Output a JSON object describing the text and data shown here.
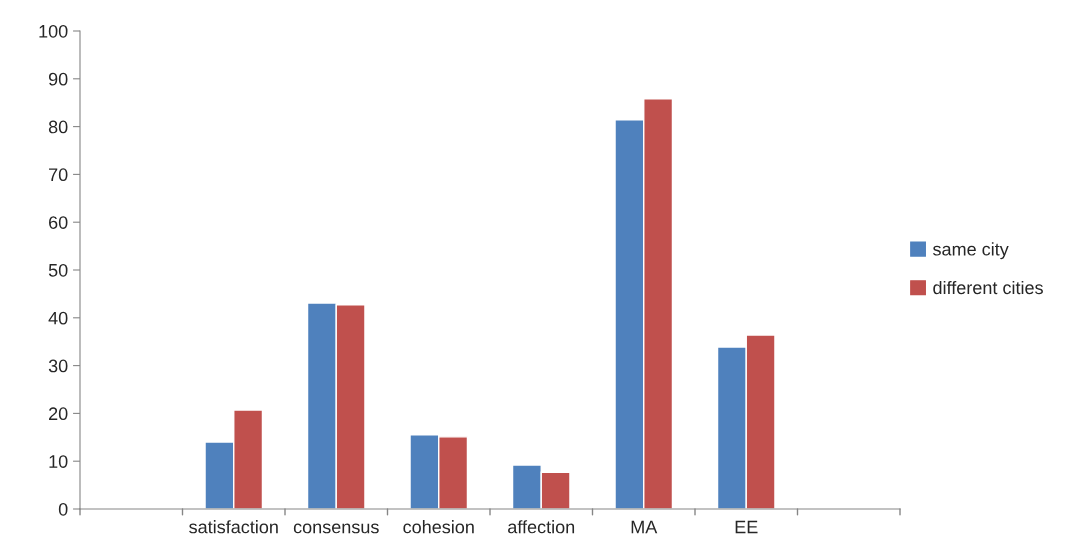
{
  "chart_data": {
    "type": "bar",
    "categories": [
      null,
      "satisfaction",
      "consensus",
      "cohesion",
      "affection",
      "MA",
      "EE",
      null
    ],
    "series": [
      {
        "name": "same city",
        "color": "#4f81bd",
        "values": [
          null,
          14.0,
          43.1,
          15.5,
          9.2,
          81.4,
          33.9,
          null
        ]
      },
      {
        "name": "different cities",
        "color": "#c0504d",
        "values": [
          null,
          20.7,
          42.7,
          15.1,
          7.7,
          85.8,
          36.4,
          null
        ]
      }
    ],
    "ylim": [
      0,
      100
    ],
    "yticks": [
      0,
      10,
      20,
      30,
      40,
      50,
      60,
      70,
      80,
      90,
      100
    ],
    "grid": false,
    "legend": "right"
  }
}
